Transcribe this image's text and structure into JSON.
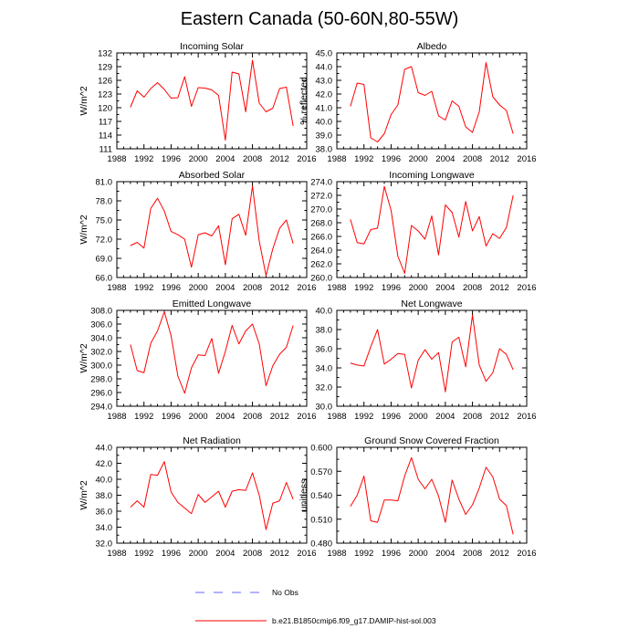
{
  "title": "Eastern Canada (50-60N,80-55W)",
  "legend": {
    "obs_label": "No Obs",
    "model_label": "b.e21.B1850cmip6.f09_g17.DAMIP-hist-sol.003",
    "obs_color": "#6666ff",
    "model_color": "#ff0000"
  },
  "chart_data": [
    {
      "type": "line",
      "title": "Incoming Solar",
      "ylabel": "W/m^2",
      "xlim": [
        1988,
        2016
      ],
      "ylim": [
        111,
        132
      ],
      "xticks": [
        "1988",
        "1992",
        "1996",
        "2000",
        "2004",
        "2008",
        "2012",
        "2016"
      ],
      "yticks": [
        "111",
        "114",
        "117",
        "120",
        "123",
        "126",
        "129",
        "132"
      ],
      "x": [
        1990,
        1991,
        1992,
        1993,
        1994,
        1995,
        1996,
        1997,
        1998,
        1999,
        2000,
        2001,
        2002,
        2003,
        2004,
        2005,
        2006,
        2007,
        2008,
        2009,
        2010,
        2011,
        2012,
        2013,
        2014
      ],
      "series": [
        {
          "values": [
            120.1,
            123.7,
            122.3,
            124.2,
            125.5,
            124.0,
            122.1,
            122.2,
            126.8,
            120.3,
            124.4,
            124.3,
            123.9,
            122.7,
            112.9,
            127.8,
            127.4,
            119.1,
            130.4,
            121.0,
            119.1,
            119.9,
            124.2,
            124.5,
            116.0
          ]
        }
      ]
    },
    {
      "type": "line",
      "title": "Albedo",
      "ylabel": "% reflected",
      "xlim": [
        1988,
        2016
      ],
      "ylim": [
        38.0,
        45.0
      ],
      "xticks": [
        "1988",
        "1992",
        "1996",
        "2000",
        "2004",
        "2008",
        "2012",
        "2016"
      ],
      "yticks": [
        "38.0",
        "39.0",
        "40.0",
        "41.0",
        "42.0",
        "43.0",
        "44.0",
        "45.0"
      ],
      "x": [
        1990,
        1991,
        1992,
        1993,
        1994,
        1995,
        1996,
        1997,
        1998,
        1999,
        2000,
        2001,
        2002,
        2003,
        2004,
        2005,
        2006,
        2007,
        2008,
        2009,
        2010,
        2011,
        2012,
        2013,
        2014
      ],
      "series": [
        {
          "values": [
            41.1,
            42.8,
            42.7,
            38.8,
            38.5,
            39.1,
            40.5,
            41.2,
            43.8,
            44.0,
            42.1,
            41.9,
            42.2,
            40.4,
            40.1,
            41.5,
            41.1,
            39.6,
            39.2,
            40.7,
            44.3,
            41.8,
            41.2,
            40.8,
            39.1
          ]
        }
      ]
    },
    {
      "type": "line",
      "title": "Absorbed Solar",
      "ylabel": "W/m^2",
      "xlim": [
        1988,
        2016
      ],
      "ylim": [
        66.0,
        81.0
      ],
      "xticks": [
        "1988",
        "1992",
        "1996",
        "2000",
        "2004",
        "2008",
        "2012",
        "2016"
      ],
      "yticks": [
        "66.0",
        "69.0",
        "72.0",
        "75.0",
        "78.0",
        "81.0"
      ],
      "x": [
        1990,
        1991,
        1992,
        1993,
        1994,
        1995,
        1996,
        1997,
        1998,
        1999,
        2000,
        2001,
        2002,
        2003,
        2004,
        2005,
        2006,
        2007,
        2008,
        2009,
        2010,
        2011,
        2012,
        2013,
        2014
      ],
      "series": [
        {
          "values": [
            71.0,
            71.5,
            70.6,
            76.8,
            78.4,
            76.4,
            73.2,
            72.7,
            72.0,
            67.6,
            72.7,
            73.0,
            72.5,
            74.1,
            68.0,
            75.2,
            75.9,
            72.6,
            80.3,
            71.7,
            66.3,
            70.5,
            73.7,
            75.0,
            71.3
          ]
        }
      ]
    },
    {
      "type": "line",
      "title": "Incoming Longwave",
      "ylabel": "",
      "xlim": [
        1988,
        2016
      ],
      "ylim": [
        260.0,
        274.0
      ],
      "xticks": [
        "1988",
        "1992",
        "1996",
        "2000",
        "2004",
        "2008",
        "2012",
        "2016"
      ],
      "yticks": [
        "260.0",
        "262.0",
        "264.0",
        "266.0",
        "268.0",
        "270.0",
        "272.0",
        "274.0"
      ],
      "x": [
        1990,
        1991,
        1992,
        1993,
        1994,
        1995,
        1996,
        1997,
        1998,
        1999,
        2000,
        2001,
        2002,
        2003,
        2004,
        2005,
        2006,
        2007,
        2008,
        2009,
        2010,
        2011,
        2012,
        2013,
        2014
      ],
      "series": [
        {
          "values": [
            268.5,
            265.1,
            264.9,
            267.0,
            267.2,
            273.3,
            269.8,
            263.1,
            260.6,
            267.6,
            266.8,
            265.6,
            269.0,
            263.3,
            270.6,
            269.5,
            265.9,
            271.1,
            266.8,
            268.9,
            264.6,
            266.4,
            265.7,
            267.3,
            272.0
          ]
        }
      ]
    },
    {
      "type": "line",
      "title": "Emitted Longwave",
      "ylabel": "W/m^2",
      "xlim": [
        1988,
        2016
      ],
      "ylim": [
        294.0,
        308.0
      ],
      "xticks": [
        "1988",
        "1992",
        "1996",
        "2000",
        "2004",
        "2008",
        "2012",
        "2016"
      ],
      "yticks": [
        "294.0",
        "296.0",
        "298.0",
        "300.0",
        "302.0",
        "304.0",
        "306.0",
        "308.0"
      ],
      "x": [
        1990,
        1991,
        1992,
        1993,
        1994,
        1995,
        1996,
        1997,
        1998,
        1999,
        2000,
        2001,
        2002,
        2003,
        2004,
        2005,
        2006,
        2007,
        2008,
        2009,
        2010,
        2011,
        2012,
        2013,
        2014
      ],
      "series": [
        {
          "values": [
            303.0,
            299.2,
            298.9,
            303.2,
            305.0,
            307.8,
            304.3,
            298.4,
            295.9,
            299.6,
            301.5,
            301.4,
            303.9,
            298.8,
            302.0,
            305.8,
            303.1,
            305.0,
            306.0,
            303.1,
            297.0,
            299.9,
            301.6,
            302.6,
            305.8
          ]
        }
      ]
    },
    {
      "type": "line",
      "title": "Net Longwave",
      "ylabel": "",
      "xlim": [
        1988,
        2016
      ],
      "ylim": [
        30.0,
        40.0
      ],
      "xticks": [
        "1988",
        "1992",
        "1996",
        "2000",
        "2004",
        "2008",
        "2012",
        "2016"
      ],
      "yticks": [
        "30.0",
        "32.0",
        "34.0",
        "36.0",
        "38.0",
        "40.0"
      ],
      "x": [
        1990,
        1991,
        1992,
        1993,
        1994,
        1995,
        1996,
        1997,
        1998,
        1999,
        2000,
        2001,
        2002,
        2003,
        2004,
        2005,
        2006,
        2007,
        2008,
        2009,
        2010,
        2011,
        2012,
        2013,
        2014
      ],
      "series": [
        {
          "values": [
            34.5,
            34.3,
            34.2,
            36.2,
            38.0,
            34.4,
            34.9,
            35.5,
            35.4,
            31.9,
            34.8,
            35.9,
            34.9,
            35.6,
            31.5,
            36.7,
            37.2,
            34.1,
            39.5,
            34.3,
            32.6,
            33.5,
            36.0,
            35.4,
            33.8
          ]
        }
      ]
    },
    {
      "type": "line",
      "title": "Net Radiation",
      "ylabel": "W/m^2",
      "xlim": [
        1988,
        2016
      ],
      "ylim": [
        32.0,
        44.0
      ],
      "xticks": [
        "1988",
        "1992",
        "1996",
        "2000",
        "2004",
        "2008",
        "2012",
        "2016"
      ],
      "yticks": [
        "32.0",
        "34.0",
        "36.0",
        "38.0",
        "40.0",
        "42.0",
        "44.0"
      ],
      "x": [
        1990,
        1991,
        1992,
        1993,
        1994,
        1995,
        1996,
        1997,
        1998,
        1999,
        2000,
        2001,
        2002,
        2003,
        2004,
        2005,
        2006,
        2007,
        2008,
        2009,
        2010,
        2011,
        2012,
        2013,
        2014
      ],
      "series": [
        {
          "values": [
            36.5,
            37.3,
            36.5,
            40.6,
            40.5,
            42.2,
            38.4,
            37.1,
            36.4,
            35.7,
            38.1,
            37.1,
            37.8,
            38.5,
            36.5,
            38.5,
            38.7,
            38.6,
            40.8,
            38.0,
            33.7,
            37.0,
            37.3,
            39.6,
            37.5
          ]
        }
      ]
    },
    {
      "type": "line",
      "title": "Ground Snow Covered Fraction",
      "ylabel": "unitless",
      "xlim": [
        1988,
        2016
      ],
      "ylim": [
        0.48,
        0.6
      ],
      "xticks": [
        "1988",
        "1992",
        "1996",
        "2000",
        "2004",
        "2008",
        "2012",
        "2016"
      ],
      "yticks": [
        "0.480",
        "0.510",
        "0.540",
        "0.570",
        "0.600"
      ],
      "x": [
        1990,
        1991,
        1992,
        1993,
        1994,
        1995,
        1996,
        1997,
        1998,
        1999,
        2000,
        2001,
        2002,
        2003,
        2004,
        2005,
        2006,
        2007,
        2008,
        2009,
        2010,
        2011,
        2012,
        2013,
        2014
      ],
      "series": [
        {
          "values": [
            0.526,
            0.54,
            0.564,
            0.508,
            0.506,
            0.534,
            0.534,
            0.533,
            0.564,
            0.587,
            0.56,
            0.548,
            0.56,
            0.539,
            0.506,
            0.559,
            0.535,
            0.516,
            0.528,
            0.549,
            0.575,
            0.563,
            0.535,
            0.527,
            0.491
          ]
        }
      ]
    }
  ]
}
